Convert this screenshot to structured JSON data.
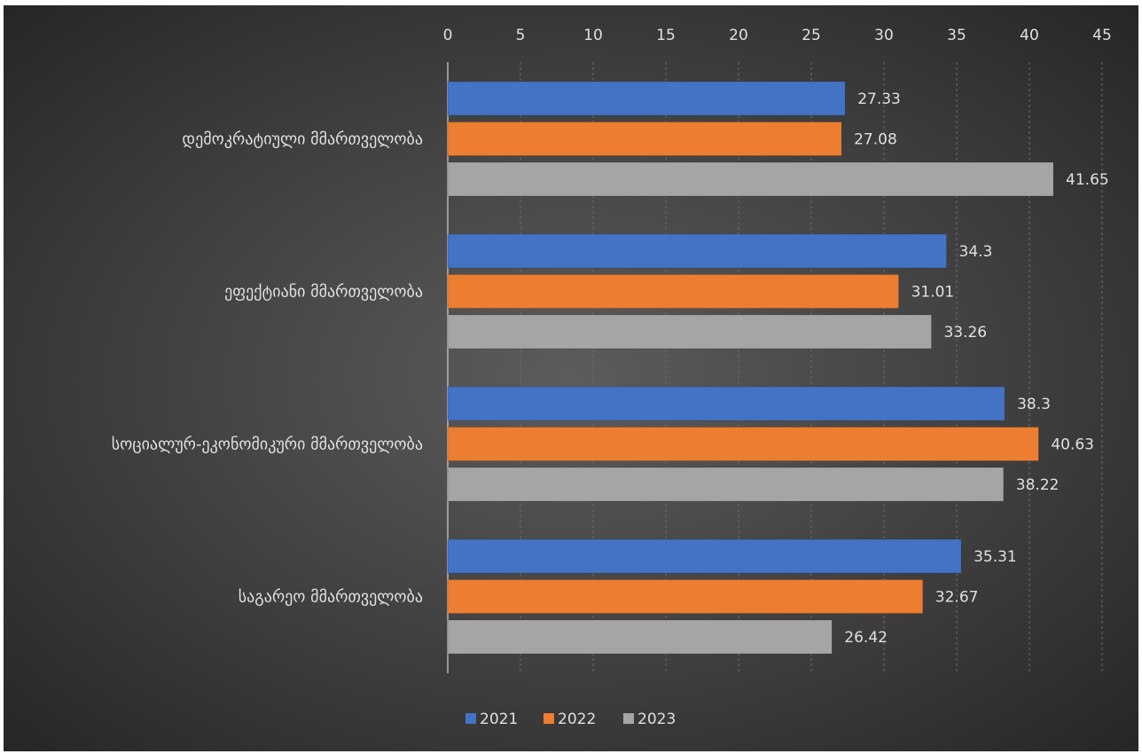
{
  "chart_data": {
    "type": "bar",
    "orientation": "horizontal",
    "categories": [
      "დემოკრატიული მმართველობა",
      "ეფექტიანი მმართველობა",
      "სოციალურ-ეკონომიკური მმართველობა",
      "საგარეო მმართველობა"
    ],
    "series": [
      {
        "name": "2021",
        "color": "#4472C4",
        "values": [
          27.33,
          34.3,
          38.3,
          35.31
        ],
        "labels": [
          "27.33",
          "34.3",
          "38.3",
          "35.31"
        ]
      },
      {
        "name": "2022",
        "color": "#ED7D31",
        "values": [
          27.08,
          31.01,
          40.63,
          32.67
        ],
        "labels": [
          "27.08",
          "31.01",
          "40.63",
          "32.67"
        ]
      },
      {
        "name": "2023",
        "color": "#A5A5A5",
        "values": [
          41.65,
          33.26,
          38.22,
          26.42
        ],
        "labels": [
          "41.65",
          "33.26",
          "38.22",
          "26.42"
        ]
      }
    ],
    "xlim": [
      0,
      45
    ],
    "xticks": [
      "0",
      "5",
      "10",
      "15",
      "20",
      "25",
      "30",
      "35",
      "40",
      "45"
    ],
    "axis_position": "top",
    "grid": true,
    "legend": "bottom-center",
    "background": "dark-gradient"
  }
}
